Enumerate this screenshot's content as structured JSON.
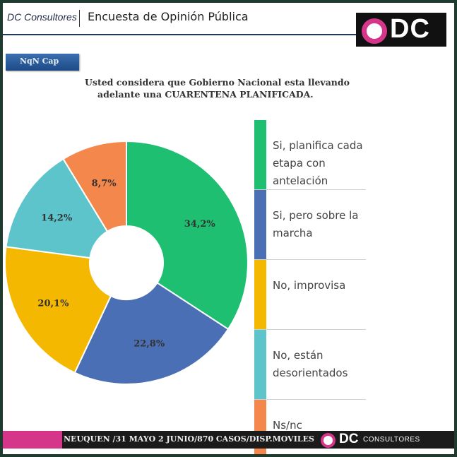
{
  "header": {
    "brand": "DC Consultores",
    "title": "Encuesta de Opinión Pública",
    "logo_text": "DC"
  },
  "tag": {
    "label": "NqN Cap"
  },
  "question": {
    "line1": "Usted considera que Gobierno Nacional esta llevando",
    "line2": "adelante una CUARENTENA PLANIFICADA."
  },
  "legend": [
    {
      "label": "Si, planifica cada etapa con antelación",
      "color": "#1fbf72"
    },
    {
      "label": "Si, pero sobre la marcha",
      "color": "#4a6fb5"
    },
    {
      "label": "No, improvisa",
      "color": "#f5b800"
    },
    {
      "label": "No, están desorientados",
      "color": "#5ec4cc"
    },
    {
      "label": "Ns/nc",
      "color": "#f4874b"
    }
  ],
  "footer": {
    "text": "NEUQUEN /31 MAYO 2 JUNIO/870 CASOS/DISP.MOVILES",
    "logo_dc": "DC",
    "logo_consultores": "CONSULTORES"
  },
  "chart_data": {
    "type": "pie",
    "donut": true,
    "title": "Usted considera que Gobierno Nacional esta llevando adelante una CUARENTENA PLANIFICADA.",
    "categories": [
      "Si, planifica cada etapa con antelación",
      "Si, pero sobre la marcha",
      "No, improvisa",
      "No, están desorientados",
      "Ns/nc"
    ],
    "values": [
      34.2,
      22.8,
      20.1,
      14.2,
      8.7
    ],
    "labels": [
      "34,2%",
      "22,8%",
      "20,1%",
      "14,2%",
      "8,7%"
    ],
    "colors": [
      "#1fbf72",
      "#4a6fb5",
      "#f5b800",
      "#5ec4cc",
      "#f4874b"
    ],
    "legend_position": "right"
  }
}
